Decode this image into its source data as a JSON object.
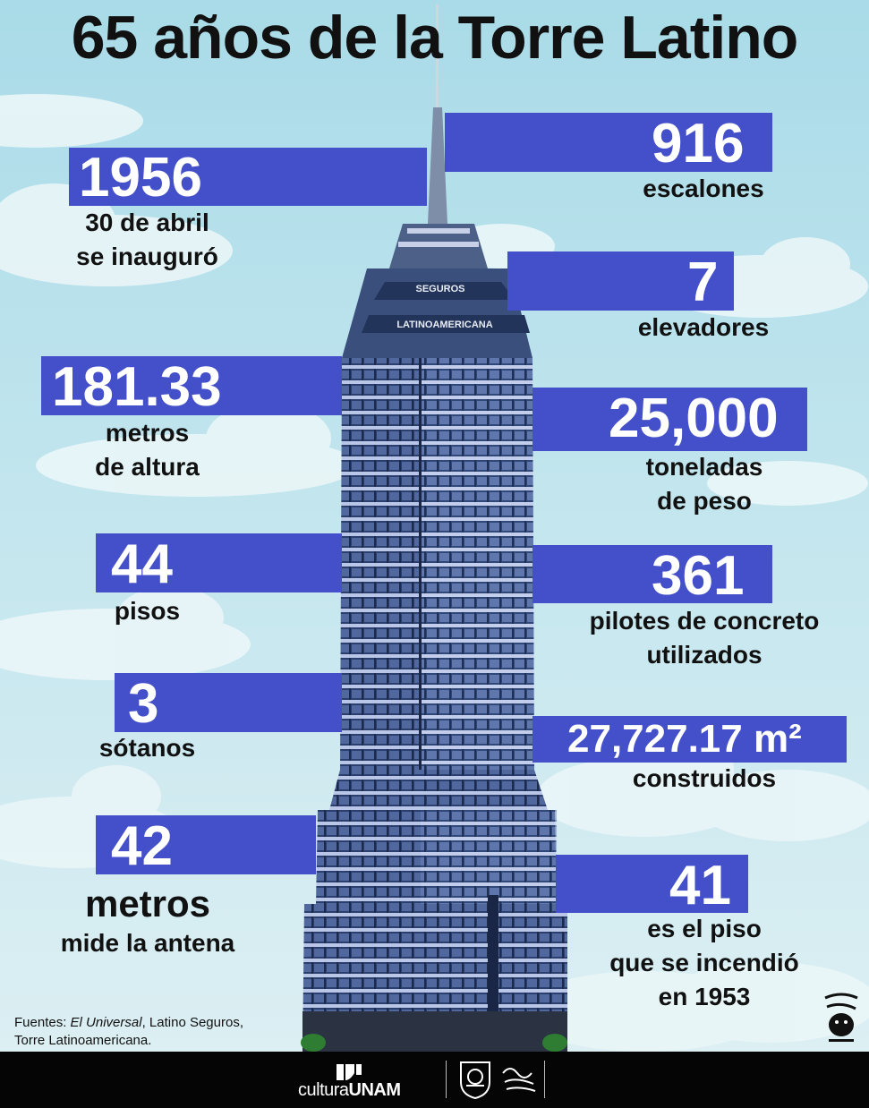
{
  "title": "65 años de la Torre Latino",
  "facts": [
    {
      "value": "1956",
      "label": [
        "30 de abril",
        "se inauguró"
      ]
    },
    {
      "value": "916",
      "label": [
        "escalones"
      ]
    },
    {
      "value": "7",
      "label": [
        "elevadores"
      ]
    },
    {
      "value": "181.33",
      "label": [
        "metros",
        "de altura"
      ]
    },
    {
      "value": "25,000",
      "label": [
        "toneladas",
        "de peso"
      ]
    },
    {
      "value": "44",
      "label": [
        "pisos"
      ]
    },
    {
      "value": "361",
      "label": [
        "pilotes de concreto",
        "utilizados"
      ]
    },
    {
      "value": "3",
      "label": [
        "sótanos"
      ]
    },
    {
      "value": "27,727.17 m²",
      "label": [
        "construidos"
      ]
    },
    {
      "value": "42",
      "label": [
        "metros",
        "mide la antena"
      ]
    },
    {
      "value": "41",
      "label": [
        "es el piso",
        "que se incendió",
        "en 1953"
      ]
    }
  ],
  "sources": {
    "prefix": "Fuentes: ",
    "source1": "El Universal",
    "rest": ", Latino Seguros,",
    "line2": "Torre Latinoamericana."
  },
  "tower_signage": [
    "SEGUROS",
    "LATINOAMERICANA"
  ],
  "footer": {
    "brand_light": "cultura",
    "brand_bold": "UNAM"
  },
  "colors": {
    "bar": "#4450c9",
    "sky": "#c9e6ee",
    "footer": "#050505"
  }
}
